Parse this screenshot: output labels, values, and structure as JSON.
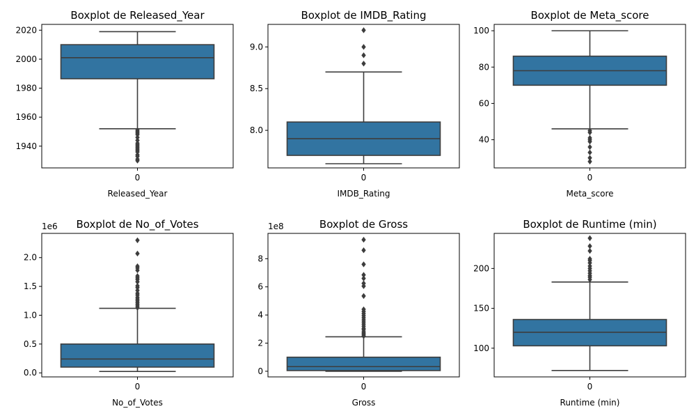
{
  "figure": {
    "background": "#ffffff",
    "box_fill": "#3274a1",
    "line_color": "#3d3d3d"
  },
  "chart_data": [
    {
      "type": "boxplot",
      "title": "Boxplot de Released_Year",
      "xlabel": "Released_Year",
      "category": "0",
      "ylim": [
        1925,
        2024
      ],
      "yticks": [
        1940,
        1960,
        1980,
        2000,
        2020
      ],
      "ytick_labels": [
        "1940",
        "1960",
        "1980",
        "2000",
        "2020"
      ],
      "offset": "",
      "whisker_low": 1952,
      "q1": 1986.5,
      "median": 2001,
      "q3": 2010,
      "whisker_high": 2019,
      "outliers": [
        1930,
        1931,
        1933,
        1934,
        1936,
        1937,
        1938,
        1939,
        1940,
        1941,
        1942,
        1944,
        1946,
        1948,
        1949,
        1950,
        1951
      ]
    },
    {
      "type": "boxplot",
      "title": "Boxplot de IMDB_Rating",
      "xlabel": "IMDB_Rating",
      "category": "0",
      "ylim": [
        7.55,
        9.27
      ],
      "yticks": [
        8.0,
        8.5,
        9.0
      ],
      "ytick_labels": [
        "8.0",
        "8.5",
        "9.0"
      ],
      "offset": "",
      "whisker_low": 7.6,
      "q1": 7.7,
      "median": 7.9,
      "q3": 8.1,
      "whisker_high": 8.7,
      "outliers": [
        8.8,
        8.9,
        9.0,
        9.2
      ]
    },
    {
      "type": "boxplot",
      "title": "Boxplot de Meta_score",
      "xlabel": "Meta_score",
      "category": "0",
      "ylim": [
        24.5,
        103.5
      ],
      "yticks": [
        40,
        60,
        80,
        100
      ],
      "ytick_labels": [
        "40",
        "60",
        "80",
        "100"
      ],
      "offset": "",
      "whisker_low": 46,
      "q1": 70,
      "median": 78,
      "q3": 86,
      "whisker_high": 100,
      "outliers": [
        28,
        30,
        33,
        36,
        39,
        40,
        41,
        44,
        45
      ]
    },
    {
      "type": "boxplot",
      "title": "Boxplot de No_of_Votes",
      "xlabel": "No_of_Votes",
      "category": "0",
      "ylim": [
        -0.07,
        2.42
      ],
      "yticks": [
        0.0,
        0.5,
        1.0,
        1.5,
        2.0
      ],
      "ytick_labels": [
        "0.0",
        "0.5",
        "1.0",
        "1.5",
        "2.0"
      ],
      "offset": "1e6",
      "whisker_low": 0.025,
      "q1": 0.1,
      "median": 0.24,
      "q3": 0.5,
      "whisker_high": 1.12,
      "outliers": [
        1.13,
        1.16,
        1.19,
        1.22,
        1.25,
        1.28,
        1.31,
        1.35,
        1.38,
        1.43,
        1.48,
        1.51,
        1.58,
        1.62,
        1.65,
        1.68,
        1.78,
        1.82,
        1.85,
        2.07,
        2.3
      ]
    },
    {
      "type": "boxplot",
      "title": "Boxplot de Gross",
      "xlabel": "Gross",
      "category": "0",
      "ylim": [
        -0.4,
        9.8
      ],
      "yticks": [
        0,
        2,
        4,
        6,
        8
      ],
      "ytick_labels": [
        "0",
        "2",
        "4",
        "6",
        "8"
      ],
      "offset": "1e8",
      "whisker_low": 0.0,
      "q1": 0.05,
      "median": 0.33,
      "q3": 1.0,
      "whisker_high": 2.45,
      "outliers": [
        2.5,
        2.6,
        2.7,
        2.8,
        2.95,
        3.05,
        3.2,
        3.35,
        3.5,
        3.65,
        3.8,
        3.95,
        4.1,
        4.25,
        4.4,
        5.35,
        6.05,
        6.25,
        6.6,
        6.85,
        7.6,
        8.6,
        9.35
      ]
    },
    {
      "type": "boxplot",
      "title": "Boxplot de Runtime (min)",
      "xlabel": "Runtime (min)",
      "category": "0",
      "ylim": [
        64,
        244
      ],
      "yticks": [
        100,
        150,
        200
      ],
      "ytick_labels": [
        "100",
        "150",
        "200"
      ],
      "offset": "",
      "whisker_low": 72,
      "q1": 103,
      "median": 120,
      "q3": 136,
      "whisker_high": 183,
      "outliers": [
        186,
        189,
        191,
        194,
        197,
        200,
        203,
        207,
        210,
        212,
        222,
        228,
        238
      ]
    }
  ]
}
